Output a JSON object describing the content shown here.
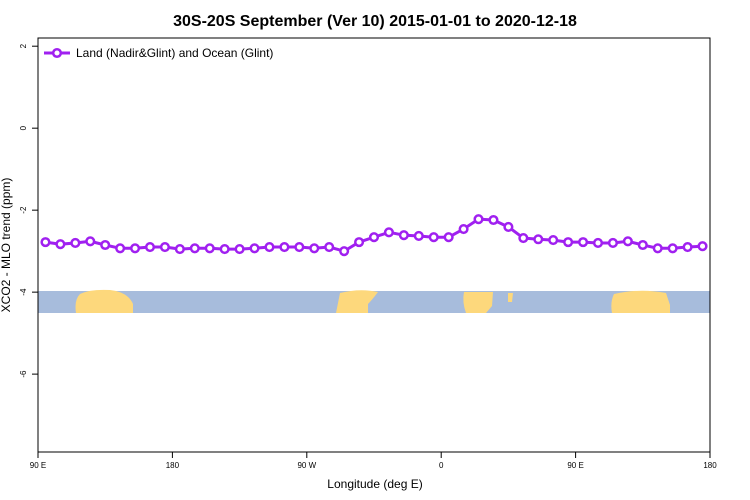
{
  "chart_data": {
    "type": "line",
    "title": "30S-20S September (Ver 10)   2015-01-01 to 2020-12-18",
    "x_label": "Longitude (deg E)",
    "y_label": "XCO2 - MLO trend (ppm)",
    "x": [
      95,
      105,
      115,
      125,
      135,
      145,
      155,
      165,
      175,
      185,
      195,
      205,
      215,
      225,
      235,
      245,
      255,
      265,
      275,
      285,
      295,
      305,
      315,
      325,
      335,
      345,
      355,
      365,
      375,
      385,
      395,
      405,
      415,
      425,
      435,
      445,
      455,
      465,
      475,
      485,
      495,
      505,
      515,
      525,
      535
    ],
    "series": [
      {
        "name": "Land (Nadir&Glint) and Ocean (Glint)",
        "color": "#a020f0",
        "values": [
          -2.78,
          -2.83,
          -2.8,
          -2.76,
          -2.85,
          -2.93,
          -2.93,
          -2.9,
          -2.9,
          -2.95,
          -2.93,
          -2.93,
          -2.95,
          -2.95,
          -2.93,
          -2.9,
          -2.9,
          -2.9,
          -2.93,
          -2.9,
          -3.0,
          -2.78,
          -2.66,
          -2.54,
          -2.61,
          -2.63,
          -2.66,
          -2.66,
          -2.46,
          -2.22,
          -2.24,
          -2.41,
          -2.68,
          -2.71,
          -2.73,
          -2.78,
          -2.78,
          -2.8,
          -2.8,
          -2.76,
          -2.85,
          -2.93,
          -2.93,
          -2.9,
          -2.88
        ]
      }
    ],
    "xlim": [
      90,
      540
    ],
    "xticks": [
      {
        "value": 90,
        "label": "90 E"
      },
      180,
      {
        "value": 270,
        "label": "90 W"
      },
      {
        "value": 360,
        "label": "0"
      },
      {
        "value": 450,
        "label": "90 E"
      },
      {
        "value": 540,
        "label": "180"
      }
    ],
    "ylim": [
      -7.9,
      2.2
    ],
    "yticks": [
      -6,
      -4,
      -2,
      0,
      2
    ],
    "legend": "top-left"
  }
}
